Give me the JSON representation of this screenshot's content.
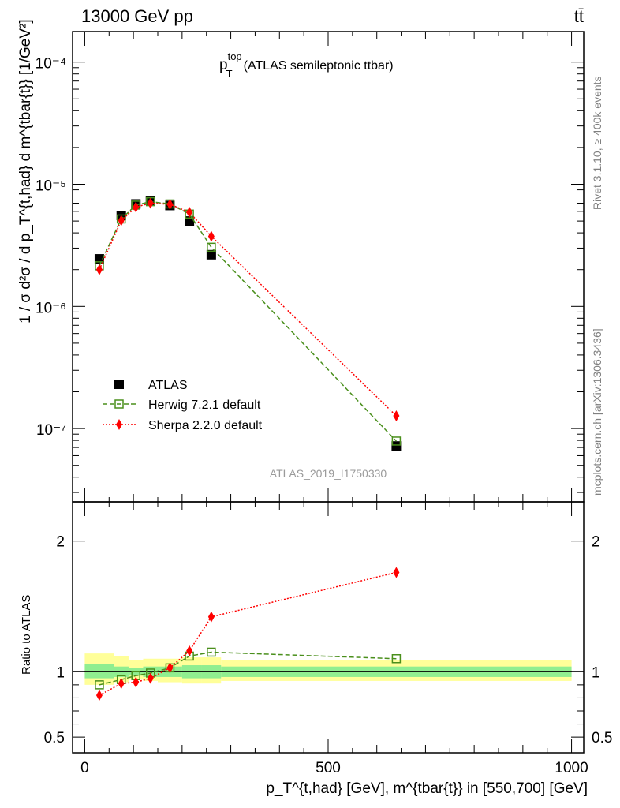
{
  "header": {
    "energy_label": "13000 GeV pp",
    "process_label": "tt̄",
    "plot_title_main": "p",
    "plot_title_sup": "top",
    "plot_title_sub": "T",
    "plot_title_rest": "(ATLAS semileptonic ttbar)",
    "analysis_id": "ATLAS_2019_I1750330"
  },
  "side_labels": {
    "rivet": "Rivet 3.1.10, ≥ 400k events",
    "mcplots": "mcplots.cern.ch [arXiv:1306.3436]"
  },
  "axes": {
    "main_ylabel": "1 / σ d²σ / d p_T^{t,had} d m^{tbar{t}} [1/GeV²]",
    "ratio_ylabel": "Ratio to ATLAS",
    "xlabel": "p_T^{t,had} [GeV], m^{tbar{t}} in [550,700] [GeV]",
    "x_ticks": [
      "0",
      "500",
      "1000"
    ],
    "main_y_ticks": [
      "10⁻⁷",
      "10⁻⁶",
      "10⁻⁵",
      "10⁻⁴"
    ],
    "ratio_y_ticks": [
      "0.5",
      "1",
      "2"
    ]
  },
  "legend": {
    "position": "lower-left",
    "entries": [
      "ATLAS",
      "Herwig 7.2.1 default",
      "Sherpa 2.2.0 default"
    ]
  },
  "chart_data": {
    "type": "scatter",
    "x": [
      30,
      75,
      105,
      135,
      175,
      215,
      260,
      640
    ],
    "xlim": [
      -25,
      1025
    ],
    "main_ylim_log10": [
      -7.6,
      -3.75
    ],
    "ratio_ylim": [
      0.38,
      2.3
    ],
    "series": [
      {
        "name": "ATLAS",
        "values": [
          2.45e-06,
          5.55e-06,
          6.9e-06,
          7.35e-06,
          6.7e-06,
          5e-06,
          2.65e-06,
          7.2e-08
        ],
        "color": "#000000"
      },
      {
        "name": "Herwig 7.2.1 default",
        "values": [
          2.15e-06,
          5.2e-06,
          6.75e-06,
          7.2e-06,
          6.9e-06,
          5.7e-06,
          3.05e-06,
          7.9e-08
        ],
        "ratio": [
          0.9,
          0.94,
          0.97,
          0.99,
          1.03,
          1.12,
          1.15,
          1.1
        ],
        "color": "#4a8f1c"
      },
      {
        "name": "Sherpa 2.2.0 default",
        "values": [
          2e-06,
          5.05e-06,
          6.5e-06,
          7e-06,
          6.85e-06,
          5.9e-06,
          3.75e-06,
          1.27e-07
        ],
        "ratio": [
          0.82,
          0.91,
          0.92,
          0.95,
          1.03,
          1.16,
          1.42,
          1.76
        ],
        "color": "#ff0000"
      }
    ],
    "uncertainty_bands": {
      "x_edges": [
        0,
        60,
        90,
        120,
        150,
        200,
        240,
        280,
        1000
      ],
      "inner_lo": [
        0.95,
        0.96,
        0.97,
        0.96,
        0.96,
        0.95,
        0.95,
        0.96
      ],
      "inner_hi": [
        1.06,
        1.04,
        1.03,
        1.04,
        1.04,
        1.05,
        1.05,
        1.04
      ],
      "outer_lo": [
        0.9,
        0.92,
        0.94,
        0.93,
        0.92,
        0.91,
        0.91,
        0.93
      ],
      "outer_hi": [
        1.14,
        1.12,
        1.09,
        1.1,
        1.1,
        1.11,
        1.11,
        1.09
      ],
      "inner_color": "#90ee90",
      "outer_color": "#ffff99"
    }
  }
}
